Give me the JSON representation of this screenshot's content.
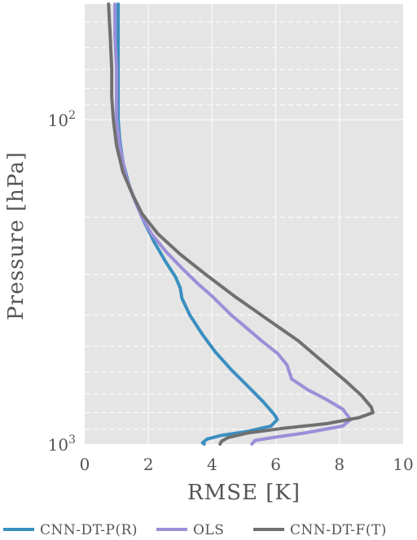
{
  "chart_data": {
    "type": "line",
    "xlabel": "RMSE [K]",
    "ylabel": "Pressure [hPa]",
    "xlim": [
      0,
      10
    ],
    "ylim": [
      1000,
      44
    ],
    "y_scale": "log",
    "y_inverted": true,
    "grid": true,
    "legend_position": "bottom",
    "x_ticks": [
      {
        "value": 0,
        "label": "0"
      },
      {
        "value": 2,
        "label": "2"
      },
      {
        "value": 4,
        "label": "4"
      },
      {
        "value": 6,
        "label": "6"
      },
      {
        "value": 8,
        "label": "8"
      },
      {
        "value": 10,
        "label": "10"
      }
    ],
    "y_major_ticks": [
      {
        "value": 100,
        "base": "10",
        "exp": "2"
      },
      {
        "value": 1000,
        "base": "10",
        "exp": "3"
      }
    ],
    "y_minor_ticks": [
      50,
      60,
      70,
      80,
      90,
      200,
      300,
      400,
      500,
      600,
      700,
      800,
      900
    ],
    "series": [
      {
        "name": "CNN-DT-P(R)",
        "color": "#3a8fc0",
        "points": [
          [
            1.05,
            44
          ],
          [
            1.05,
            55
          ],
          [
            1.05,
            70
          ],
          [
            1.05,
            85
          ],
          [
            1.05,
            100
          ],
          [
            1.1,
            115
          ],
          [
            1.2,
            135
          ],
          [
            1.4,
            160
          ],
          [
            1.6,
            180
          ],
          [
            1.85,
            205
          ],
          [
            2.2,
            240
          ],
          [
            2.55,
            275
          ],
          [
            2.85,
            305
          ],
          [
            3.0,
            330
          ],
          [
            3.05,
            355
          ],
          [
            3.3,
            400
          ],
          [
            3.7,
            460
          ],
          [
            4.1,
            520
          ],
          [
            4.6,
            590
          ],
          [
            5.1,
            660
          ],
          [
            5.6,
            740
          ],
          [
            5.95,
            810
          ],
          [
            6.05,
            840
          ],
          [
            5.85,
            880
          ],
          [
            5.1,
            915
          ],
          [
            4.3,
            940
          ],
          [
            3.85,
            965
          ],
          [
            3.7,
            990
          ],
          [
            3.75,
            1000
          ]
        ]
      },
      {
        "name": "OLS",
        "color": "#9b8fd8",
        "points": [
          [
            0.95,
            44
          ],
          [
            0.95,
            55
          ],
          [
            1.0,
            70
          ],
          [
            1.0,
            85
          ],
          [
            1.0,
            100
          ],
          [
            1.1,
            120
          ],
          [
            1.3,
            150
          ],
          [
            1.55,
            175
          ],
          [
            1.8,
            200
          ],
          [
            2.1,
            225
          ],
          [
            2.55,
            255
          ],
          [
            3.1,
            290
          ],
          [
            3.55,
            320
          ],
          [
            4.0,
            350
          ],
          [
            4.6,
            400
          ],
          [
            5.1,
            440
          ],
          [
            5.55,
            480
          ],
          [
            6.05,
            525
          ],
          [
            6.35,
            570
          ],
          [
            6.5,
            630
          ],
          [
            7.0,
            680
          ],
          [
            7.6,
            730
          ],
          [
            8.1,
            780
          ],
          [
            8.35,
            840
          ],
          [
            8.1,
            880
          ],
          [
            6.9,
            925
          ],
          [
            5.9,
            955
          ],
          [
            5.35,
            975
          ],
          [
            5.25,
            1000
          ]
        ]
      },
      {
        "name": "CNN-DT-F(T)",
        "color": "#707070",
        "points": [
          [
            0.75,
            44
          ],
          [
            0.8,
            55
          ],
          [
            0.85,
            70
          ],
          [
            0.85,
            85
          ],
          [
            0.9,
            100
          ],
          [
            1.0,
            120
          ],
          [
            1.2,
            145
          ],
          [
            1.5,
            170
          ],
          [
            1.8,
            195
          ],
          [
            2.3,
            225
          ],
          [
            3.0,
            260
          ],
          [
            3.8,
            300
          ],
          [
            4.7,
            350
          ],
          [
            5.7,
            410
          ],
          [
            6.7,
            480
          ],
          [
            7.5,
            560
          ],
          [
            8.2,
            640
          ],
          [
            8.7,
            710
          ],
          [
            9.0,
            770
          ],
          [
            9.05,
            800
          ],
          [
            8.6,
            830
          ],
          [
            7.6,
            865
          ],
          [
            6.2,
            895
          ],
          [
            5.1,
            925
          ],
          [
            4.5,
            955
          ],
          [
            4.3,
            980
          ],
          [
            4.25,
            1000
          ]
        ]
      }
    ]
  }
}
